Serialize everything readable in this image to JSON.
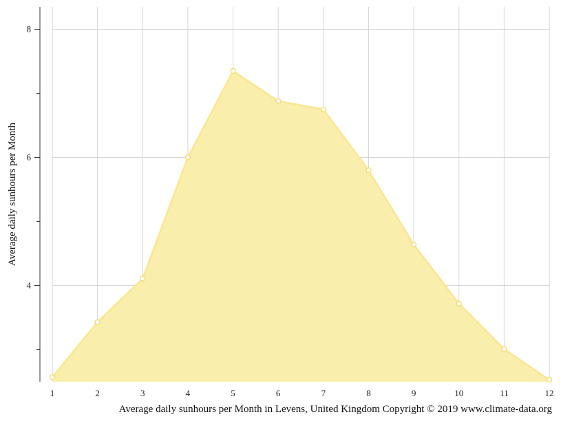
{
  "chart_data": {
    "type": "area",
    "ylabel": "Average daily sunhours per Month",
    "caption": "Average daily sunhours per Month in Levens, United Kingdom Copyright © 2019 www.climate-data.org",
    "x": [
      1,
      2,
      3,
      4,
      5,
      6,
      7,
      8,
      9,
      10,
      11,
      12
    ],
    "series": [
      {
        "values": [
          2.57,
          3.43,
          4.11,
          6.0,
          7.35,
          6.88,
          6.75,
          5.8,
          4.64,
          3.72,
          3.01,
          2.53
        ]
      }
    ],
    "xlim": [
      1,
      12
    ],
    "ylim": [
      2.5,
      8.35
    ],
    "yticks_labeled": [
      4,
      6,
      8
    ],
    "yticks_minor": [
      3,
      5,
      7
    ],
    "grid": true,
    "legend": "none",
    "colors": {
      "fill": "#faeeac",
      "stroke": "#fbe690",
      "marker_fill": "#ffffff",
      "marker_stroke": "#f5d865"
    }
  }
}
